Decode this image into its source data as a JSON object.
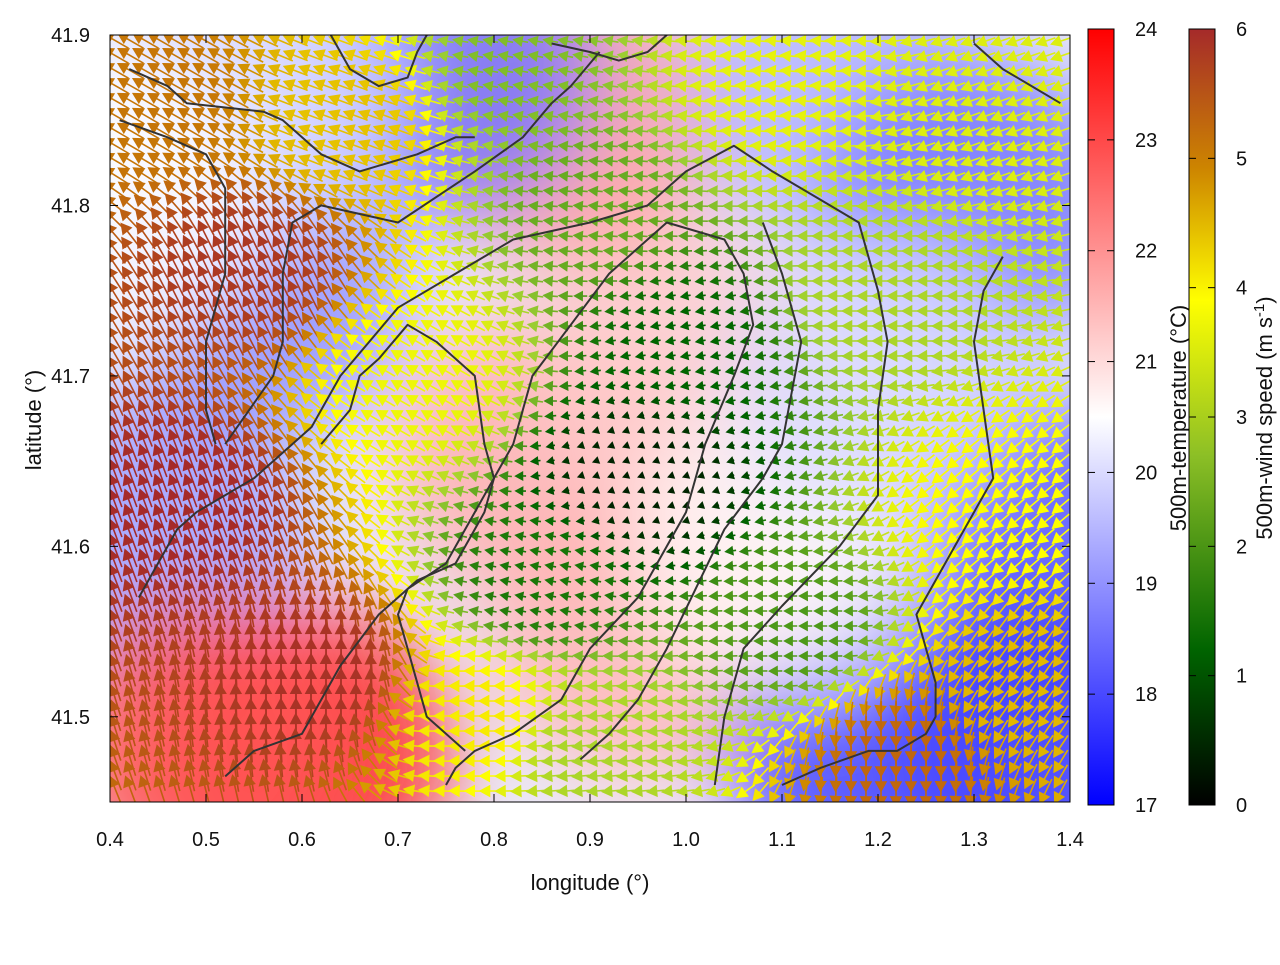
{
  "chart_data": {
    "type": "heatmap",
    "xlabel": "longitude (°)",
    "ylabel": "latitude (°)",
    "xlim": [
      0.4,
      1.4
    ],
    "ylim": [
      41.45,
      41.9
    ],
    "x_ticks": [
      "0.4",
      "0.5",
      "0.6",
      "0.7",
      "0.8",
      "0.9",
      "1.0",
      "1.1",
      "1.2",
      "1.3",
      "1.4"
    ],
    "y_ticks": [
      "41.5",
      "41.6",
      "41.7",
      "41.8",
      "41.9"
    ],
    "grid": false,
    "overlays": [
      "wind-vector-arrows",
      "terrain-contours"
    ],
    "colorbars": [
      {
        "label": "500m-temperature (°C)",
        "range": [
          17,
          24
        ],
        "ticks": [
          "17",
          "18",
          "19",
          "20",
          "21",
          "22",
          "23",
          "24"
        ],
        "colors": [
          "#0000ff",
          "#ffffff",
          "#ff0000"
        ]
      },
      {
        "label_main": "500m-wind speed (m s",
        "label_sup": "-1",
        "label_end": ")",
        "range": [
          0,
          6
        ],
        "ticks": [
          "0",
          "1",
          "2",
          "3",
          "4",
          "5",
          "6"
        ],
        "colors": [
          "#000000",
          "#006400",
          "#9acd32",
          "#ffff00",
          "#cd8500",
          "#a52a2a"
        ]
      }
    ],
    "temperature_regions": [
      {
        "lon": 0.45,
        "lat": 41.6,
        "t": 19.2
      },
      {
        "lon": 0.55,
        "lat": 41.75,
        "t": 19.0
      },
      {
        "lon": 0.6,
        "lat": 41.48,
        "t": 23.5
      },
      {
        "lon": 0.5,
        "lat": 41.48,
        "t": 22.8
      },
      {
        "lon": 0.85,
        "lat": 41.65,
        "t": 21.6
      },
      {
        "lon": 0.95,
        "lat": 41.55,
        "t": 21.5
      },
      {
        "lon": 1.0,
        "lat": 41.7,
        "t": 21.2
      },
      {
        "lon": 0.88,
        "lat": 41.85,
        "t": 21.8
      },
      {
        "lon": 0.75,
        "lat": 41.88,
        "t": 18.6
      },
      {
        "lon": 0.55,
        "lat": 41.86,
        "t": 20.0
      },
      {
        "lon": 1.15,
        "lat": 41.87,
        "t": 19.5
      },
      {
        "lon": 1.3,
        "lat": 41.8,
        "t": 18.6
      },
      {
        "lon": 1.35,
        "lat": 41.6,
        "t": 18.2
      },
      {
        "lon": 1.37,
        "lat": 41.48,
        "t": 17.8
      },
      {
        "lon": 1.2,
        "lat": 41.48,
        "t": 18.0
      },
      {
        "lon": 1.1,
        "lat": 41.6,
        "t": 20.6
      },
      {
        "lon": 1.2,
        "lat": 41.7,
        "t": 20.0
      },
      {
        "lon": 0.4,
        "lat": 41.8,
        "t": 20.5
      }
    ],
    "wind_regions": [
      {
        "lon": 0.48,
        "lat": 41.62,
        "speed": 6.0,
        "dir_deg": 110
      },
      {
        "lon": 0.55,
        "lat": 41.76,
        "speed": 5.8,
        "dir_deg": 115
      },
      {
        "lon": 0.62,
        "lat": 41.52,
        "speed": 5.9,
        "dir_deg": 90
      },
      {
        "lon": 0.45,
        "lat": 41.86,
        "speed": 5.0,
        "dir_deg": 150
      },
      {
        "lon": 0.65,
        "lat": 41.85,
        "speed": 4.2,
        "dir_deg": 160
      },
      {
        "lon": 0.72,
        "lat": 41.7,
        "speed": 3.4,
        "dir_deg": 150
      },
      {
        "lon": 0.78,
        "lat": 41.5,
        "speed": 3.8,
        "dir_deg": 180
      },
      {
        "lon": 0.9,
        "lat": 41.8,
        "speed": 2.0,
        "dir_deg": 175
      },
      {
        "lon": 0.95,
        "lat": 41.64,
        "speed": 0.4,
        "dir_deg": 200
      },
      {
        "lon": 1.0,
        "lat": 41.72,
        "speed": 1.2,
        "dir_deg": 190
      },
      {
        "lon": 0.85,
        "lat": 41.58,
        "speed": 1.4,
        "dir_deg": 170
      },
      {
        "lon": 1.12,
        "lat": 41.55,
        "speed": 1.8,
        "dir_deg": 180
      },
      {
        "lon": 1.2,
        "lat": 41.75,
        "speed": 2.6,
        "dir_deg": 180
      },
      {
        "lon": 1.1,
        "lat": 41.87,
        "speed": 3.3,
        "dir_deg": 175
      },
      {
        "lon": 1.3,
        "lat": 41.85,
        "speed": 3.2,
        "dir_deg": 200
      },
      {
        "lon": 1.33,
        "lat": 41.62,
        "speed": 3.6,
        "dir_deg": 220
      },
      {
        "lon": 1.35,
        "lat": 41.52,
        "speed": 4.3,
        "dir_deg": 235
      },
      {
        "lon": 1.22,
        "lat": 41.48,
        "speed": 5.2,
        "dir_deg": 270
      },
      {
        "lon": 0.82,
        "lat": 41.88,
        "speed": 2.2,
        "dir_deg": 170
      },
      {
        "lon": 0.9,
        "lat": 41.48,
        "speed": 2.6,
        "dir_deg": 185
      }
    ],
    "contours": [
      [
        [
          0.43,
          41.57
        ],
        [
          0.47,
          41.61
        ],
        [
          0.49,
          41.62
        ],
        [
          0.55,
          41.64
        ],
        [
          0.61,
          41.67
        ],
        [
          0.64,
          41.7
        ],
        [
          0.7,
          41.74
        ],
        [
          0.76,
          41.76
        ],
        [
          0.82,
          41.78
        ],
        [
          0.9,
          41.79
        ],
        [
          0.96,
          41.8
        ],
        [
          1.0,
          41.82
        ],
        [
          1.05,
          41.835
        ],
        [
          1.09,
          41.82
        ],
        [
          1.15,
          41.8
        ],
        [
          1.18,
          41.79
        ],
        [
          1.2,
          41.75
        ],
        [
          1.21,
          41.72
        ],
        [
          1.2,
          41.68
        ],
        [
          1.2,
          41.63
        ],
        [
          1.16,
          41.6
        ],
        [
          1.1,
          41.565
        ],
        [
          1.06,
          41.54
        ],
        [
          1.04,
          41.5
        ],
        [
          1.03,
          41.46
        ]
      ],
      [
        [
          0.52,
          41.66
        ],
        [
          0.57,
          41.7
        ],
        [
          0.58,
          41.72
        ],
        [
          0.58,
          41.76
        ],
        [
          0.59,
          41.79
        ],
        [
          0.62,
          41.8
        ],
        [
          0.7,
          41.79
        ],
        [
          0.78,
          41.82
        ],
        [
          0.83,
          41.84
        ],
        [
          0.86,
          41.86
        ],
        [
          0.88,
          41.87
        ],
        [
          0.91,
          41.89
        ]
      ],
      [
        [
          0.41,
          41.85
        ],
        [
          0.46,
          41.84
        ],
        [
          0.5,
          41.83
        ],
        [
          0.52,
          41.81
        ],
        [
          0.52,
          41.76
        ],
        [
          0.5,
          41.72
        ],
        [
          0.5,
          41.68
        ],
        [
          0.51,
          41.66
        ]
      ],
      [
        [
          0.42,
          41.88
        ],
        [
          0.46,
          41.87
        ],
        [
          0.48,
          41.86
        ],
        [
          0.56,
          41.855
        ],
        [
          0.58,
          41.85
        ],
        [
          0.62,
          41.83
        ],
        [
          0.66,
          41.82
        ],
        [
          0.72,
          41.83
        ],
        [
          0.76,
          41.84
        ],
        [
          0.78,
          41.84
        ]
      ],
      [
        [
          0.52,
          41.465
        ],
        [
          0.55,
          41.48
        ],
        [
          0.6,
          41.49
        ],
        [
          0.62,
          41.51
        ],
        [
          0.64,
          41.53
        ],
        [
          0.66,
          41.545
        ],
        [
          0.68,
          41.56
        ],
        [
          0.7,
          41.57
        ],
        [
          0.72,
          41.58
        ],
        [
          0.76,
          41.59
        ],
        [
          0.79,
          41.62
        ],
        [
          0.8,
          41.64
        ],
        [
          0.79,
          41.66
        ],
        [
          0.78,
          41.7
        ],
        [
          0.74,
          41.72
        ],
        [
          0.71,
          41.73
        ],
        [
          0.68,
          41.71
        ],
        [
          0.66,
          41.7
        ],
        [
          0.65,
          41.68
        ],
        [
          0.62,
          41.66
        ]
      ],
      [
        [
          0.75,
          41.46
        ],
        [
          0.76,
          41.47
        ],
        [
          0.78,
          41.48
        ],
        [
          0.82,
          41.49
        ],
        [
          0.87,
          41.51
        ],
        [
          0.9,
          41.54
        ],
        [
          0.95,
          41.57
        ],
        [
          0.98,
          41.6
        ],
        [
          1.0,
          41.62
        ],
        [
          1.02,
          41.66
        ],
        [
          1.05,
          41.7
        ],
        [
          1.07,
          41.73
        ],
        [
          1.06,
          41.76
        ],
        [
          1.04,
          41.78
        ],
        [
          0.98,
          41.79
        ],
        [
          0.92,
          41.76
        ],
        [
          0.88,
          41.73
        ],
        [
          0.84,
          41.7
        ],
        [
          0.82,
          41.66
        ],
        [
          0.78,
          41.62
        ],
        [
          0.75,
          41.59
        ],
        [
          0.71,
          41.575
        ],
        [
          0.7,
          41.56
        ],
        [
          0.71,
          41.54
        ],
        [
          0.72,
          41.52
        ],
        [
          0.73,
          41.5
        ],
        [
          0.75,
          41.49
        ],
        [
          0.77,
          41.48
        ]
      ],
      [
        [
          0.89,
          41.475
        ],
        [
          0.92,
          41.49
        ],
        [
          0.95,
          41.51
        ],
        [
          0.98,
          41.54
        ],
        [
          1.01,
          41.575
        ],
        [
          1.04,
          41.61
        ],
        [
          1.08,
          41.64
        ],
        [
          1.1,
          41.66
        ],
        [
          1.12,
          41.72
        ],
        [
          1.1,
          41.76
        ],
        [
          1.08,
          41.79
        ]
      ],
      [
        [
          1.1,
          41.46
        ],
        [
          1.14,
          41.47
        ],
        [
          1.19,
          41.48
        ],
        [
          1.22,
          41.48
        ],
        [
          1.25,
          41.49
        ],
        [
          1.26,
          41.5
        ],
        [
          1.26,
          41.52
        ],
        [
          1.25,
          41.54
        ],
        [
          1.24,
          41.56
        ],
        [
          1.26,
          41.58
        ],
        [
          1.28,
          41.6
        ],
        [
          1.3,
          41.62
        ],
        [
          1.32,
          41.64
        ],
        [
          1.31,
          41.68
        ],
        [
          1.3,
          41.72
        ],
        [
          1.31,
          41.75
        ],
        [
          1.33,
          41.77
        ]
      ],
      [
        [
          0.63,
          41.9
        ],
        [
          0.65,
          41.88
        ],
        [
          0.68,
          41.87
        ],
        [
          0.71,
          41.875
        ],
        [
          0.72,
          41.89
        ],
        [
          0.73,
          41.9
        ]
      ],
      [
        [
          0.86,
          41.895
        ],
        [
          0.9,
          41.89
        ],
        [
          0.93,
          41.885
        ],
        [
          0.96,
          41.89
        ],
        [
          0.98,
          41.9
        ]
      ],
      [
        [
          1.3,
          41.895
        ],
        [
          1.33,
          41.88
        ],
        [
          1.36,
          41.87
        ],
        [
          1.39,
          41.86
        ]
      ]
    ]
  }
}
